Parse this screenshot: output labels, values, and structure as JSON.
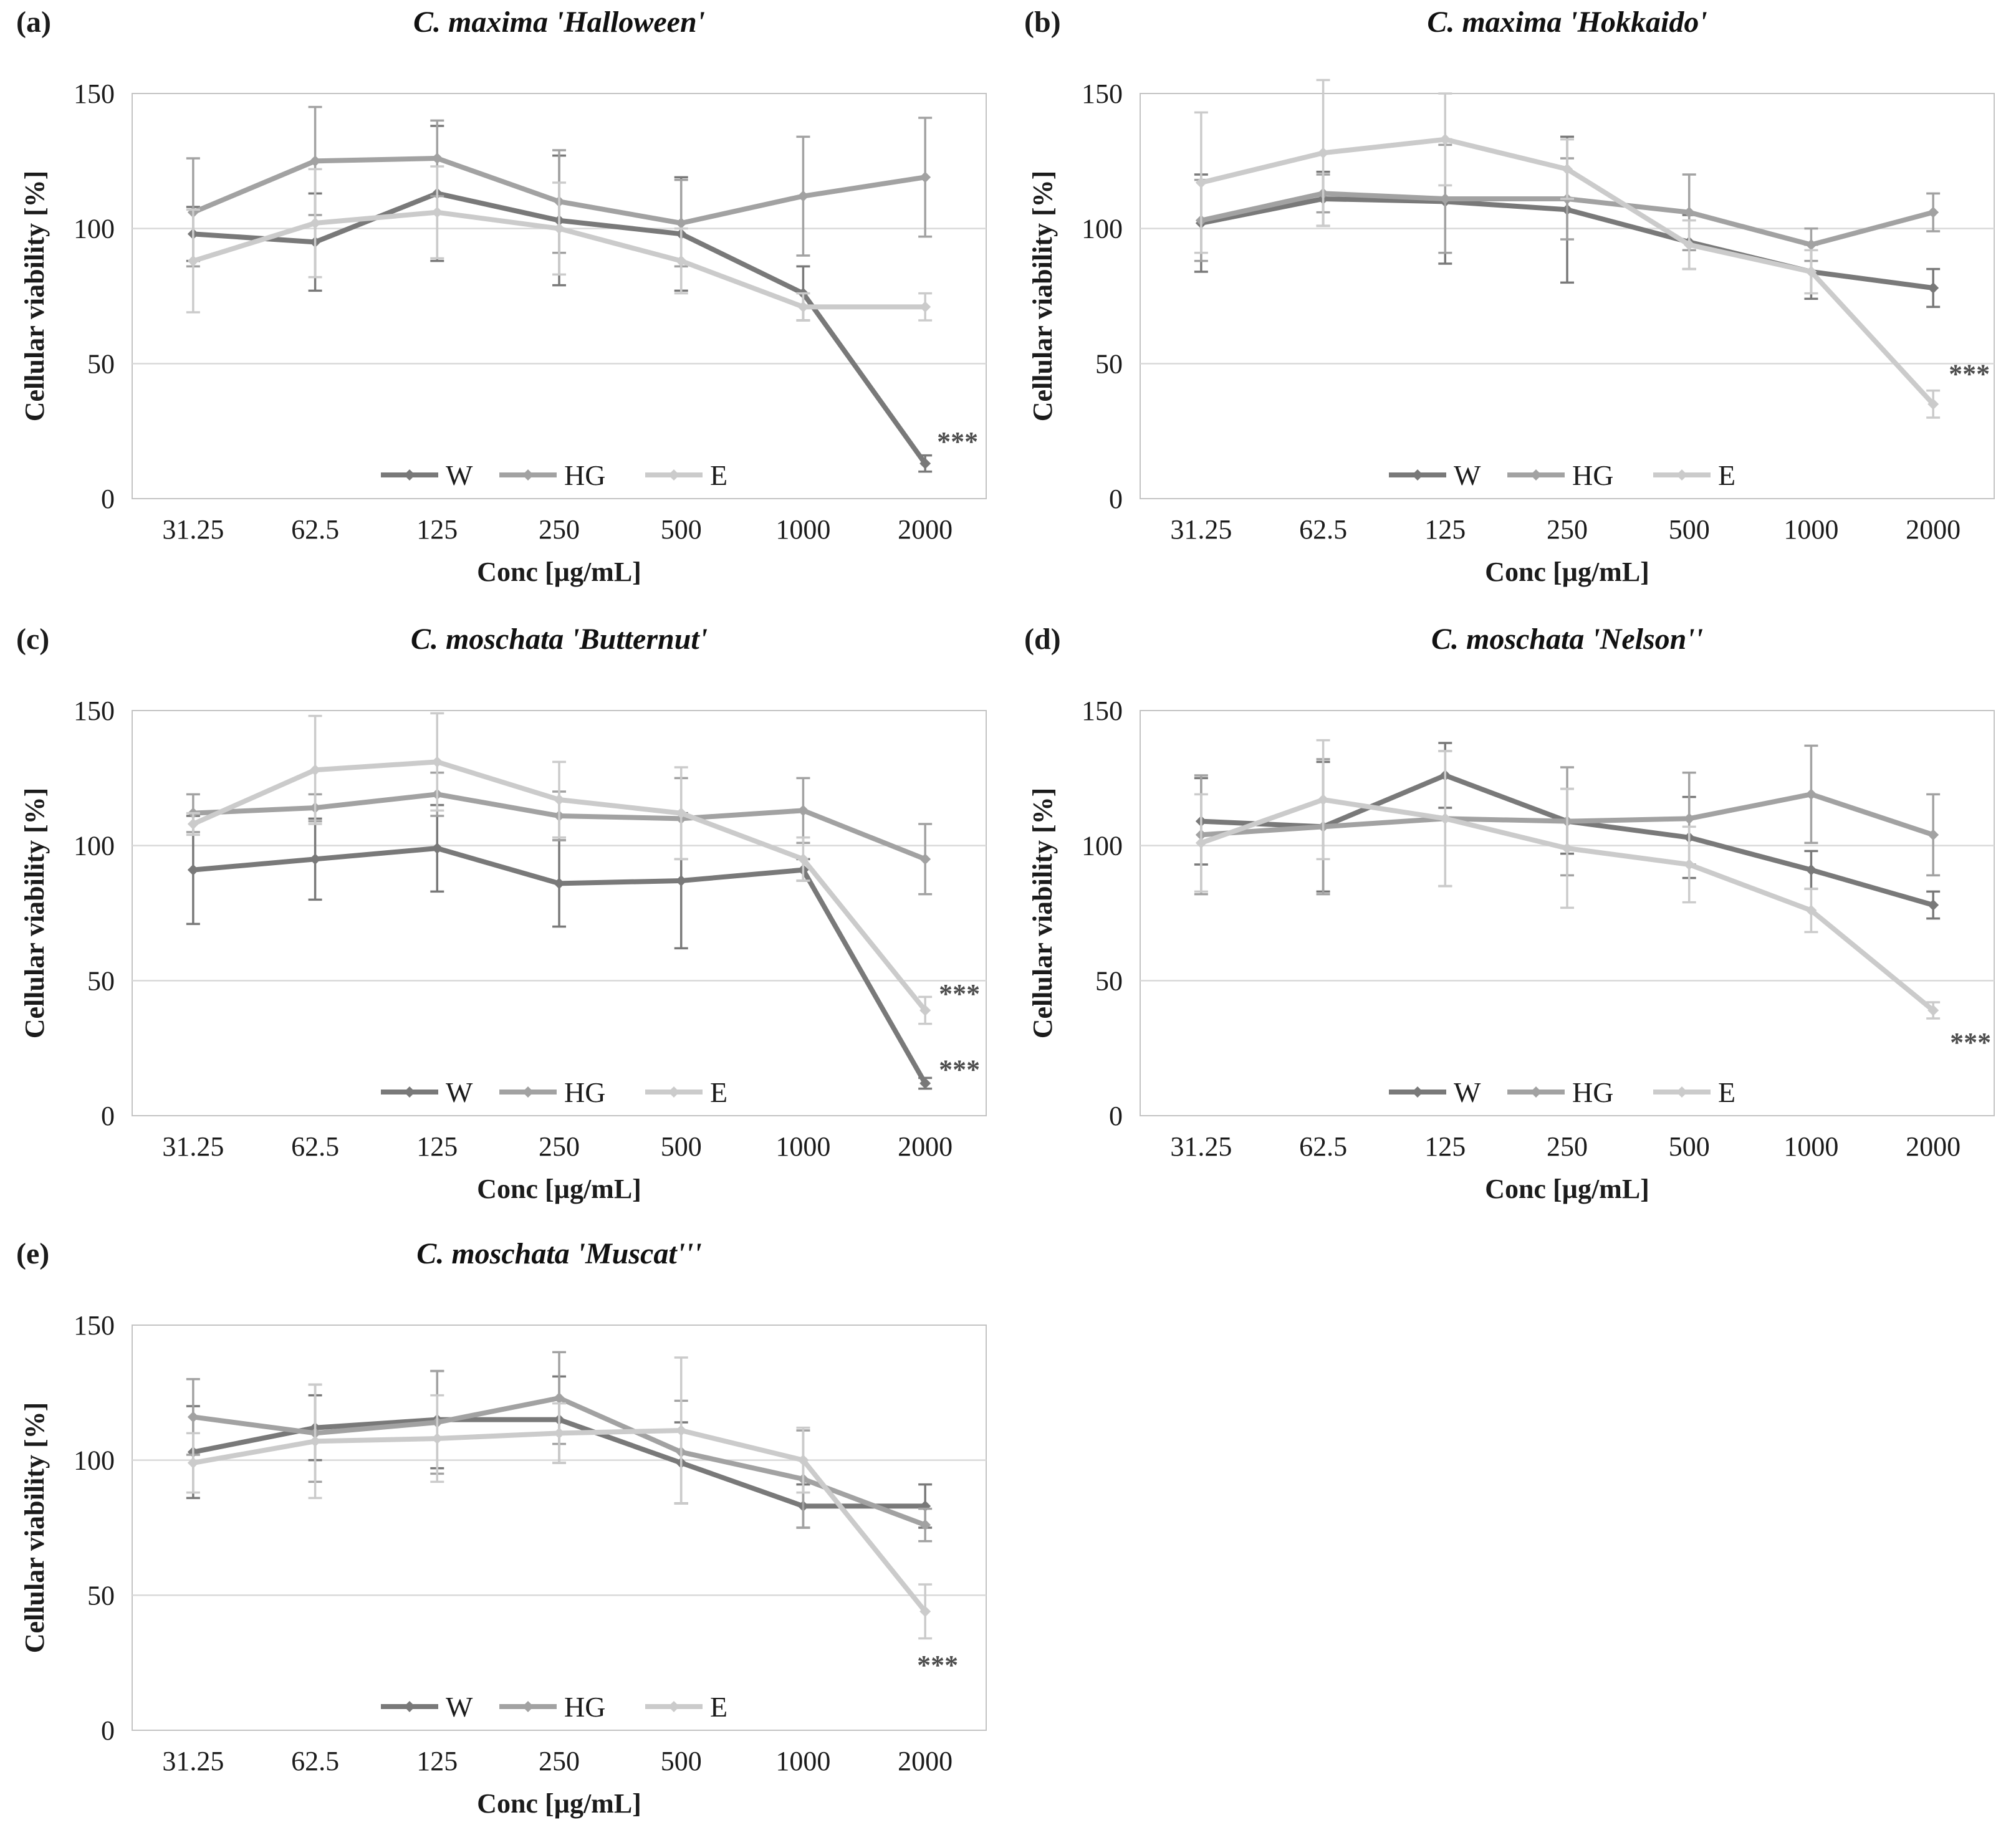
{
  "colors": {
    "w": "#797979",
    "hg": "#a2a2a2",
    "e": "#cbcbcb",
    "gridline": "#d9d9d9",
    "plot_border": "#c3c3c3",
    "text": "#1b1b1b",
    "annotation": "#4d4d4d",
    "background": "#ffffff"
  },
  "axes": {
    "xlabel": "Conc [µg/mL]",
    "ylabel": "Cellular viability [%]",
    "categories": [
      "31.25",
      "62.5",
      "125",
      "250",
      "500",
      "1000",
      "2000"
    ],
    "yticks": [
      0,
      50,
      100,
      150
    ],
    "ylim": [
      0,
      150
    ],
    "grid_values": [
      50,
      100
    ]
  },
  "legend": {
    "items": [
      "W",
      "HG",
      "E"
    ],
    "position": "bottom-center-inside"
  },
  "chart_data": [
    {
      "type": "line",
      "panel": "(a)",
      "title": "C. maxima 'Halloween'",
      "xlabel": "Conc [µg/mL]",
      "ylabel": "Cellular viability [%]",
      "ylim": [
        0,
        150
      ],
      "categories": [
        "31.25",
        "62.5",
        "125",
        "250",
        "500",
        "1000",
        "2000"
      ],
      "series": [
        {
          "name": "W",
          "color_key": "w",
          "values": [
            98,
            95,
            113,
            103,
            98,
            76,
            13
          ],
          "errors": [
            10,
            18,
            25,
            24,
            21,
            10,
            3
          ]
        },
        {
          "name": "HG",
          "color_key": "hg",
          "values": [
            106,
            125,
            126,
            110,
            102,
            112,
            119
          ],
          "errors": [
            20,
            20,
            14,
            19,
            16,
            22,
            22
          ]
        },
        {
          "name": "E",
          "color_key": "e",
          "values": [
            88,
            102,
            106,
            100,
            88,
            71,
            71
          ],
          "errors": [
            19,
            20,
            17,
            17,
            12,
            5,
            5
          ]
        }
      ],
      "annotations": [
        {
          "text": "***",
          "xi": 6,
          "y": 21,
          "dx": 52
        }
      ]
    },
    {
      "type": "line",
      "panel": "(b)",
      "title": "C. maxima 'Hokkaido'",
      "xlabel": "Conc [µg/mL]",
      "ylabel": "Cellular viability [%]",
      "ylim": [
        0,
        150
      ],
      "categories": [
        "31.25",
        "62.5",
        "125",
        "250",
        "500",
        "1000",
        "2000"
      ],
      "series": [
        {
          "name": "W",
          "color_key": "w",
          "values": [
            102,
            111,
            110,
            107,
            95,
            84,
            78
          ],
          "errors": [
            18,
            10,
            23,
            27,
            10,
            10,
            7
          ]
        },
        {
          "name": "HG",
          "color_key": "hg",
          "values": [
            103,
            113,
            111,
            111,
            106,
            94,
            106
          ],
          "errors": [
            15,
            7,
            20,
            15,
            14,
            6,
            7
          ]
        },
        {
          "name": "E",
          "color_key": "e",
          "values": [
            117,
            128,
            133,
            122,
            94,
            84,
            35
          ],
          "errors": [
            26,
            27,
            17,
            11,
            9,
            8,
            5
          ]
        }
      ],
      "annotations": [
        {
          "text": "***",
          "xi": 6,
          "y": 46,
          "dx": 58
        }
      ]
    },
    {
      "type": "line",
      "panel": "(c)",
      "title": "C. moschata 'Butternut'",
      "xlabel": "Conc [µg/mL]",
      "ylabel": "Cellular viability [%]",
      "ylim": [
        0,
        150
      ],
      "categories": [
        "31.25",
        "62.5",
        "125",
        "250",
        "500",
        "1000",
        "2000"
      ],
      "series": [
        {
          "name": "W",
          "color_key": "w",
          "values": [
            91,
            95,
            99,
            86,
            87,
            91,
            12
          ],
          "errors": [
            20,
            15,
            16,
            16,
            25,
            4,
            2
          ]
        },
        {
          "name": "HG",
          "color_key": "hg",
          "values": [
            112,
            114,
            119,
            111,
            110,
            113,
            95
          ],
          "errors": [
            7,
            5,
            8,
            9,
            15,
            12,
            13
          ]
        },
        {
          "name": "E",
          "color_key": "e",
          "values": [
            108,
            128,
            131,
            117,
            112,
            95,
            39
          ],
          "errors": [
            4,
            20,
            18,
            14,
            17,
            8,
            5
          ]
        }
      ],
      "annotations": [
        {
          "text": "***",
          "xi": 6,
          "y": 45,
          "dx": 55
        },
        {
          "text": "***",
          "xi": 6,
          "y": 17,
          "dx": 55
        }
      ]
    },
    {
      "type": "line",
      "panel": "(d)",
      "title": "C. moschata 'Nelson''",
      "xlabel": "Conc [µg/mL]",
      "ylabel": "Cellular viability [%]",
      "ylim": [
        0,
        150
      ],
      "categories": [
        "31.25",
        "62.5",
        "125",
        "250",
        "500",
        "1000",
        "2000"
      ],
      "series": [
        {
          "name": "W",
          "color_key": "w",
          "values": [
            109,
            107,
            126,
            109,
            103,
            91,
            78
          ],
          "errors": [
            16,
            24,
            12,
            12,
            15,
            7,
            5
          ]
        },
        {
          "name": "HG",
          "color_key": "hg",
          "values": [
            104,
            107,
            110,
            109,
            110,
            119,
            104
          ],
          "errors": [
            22,
            25,
            25,
            20,
            17,
            18,
            15
          ]
        },
        {
          "name": "E",
          "color_key": "e",
          "values": [
            101,
            117,
            110,
            99,
            93,
            76,
            39
          ],
          "errors": [
            18,
            22,
            25,
            22,
            14,
            8,
            3
          ]
        }
      ],
      "annotations": [
        {
          "text": "***",
          "xi": 6,
          "y": 27,
          "dx": 60
        }
      ]
    },
    {
      "type": "line",
      "panel": "(e)",
      "title": "C. moschata 'Muscat'''",
      "xlabel": "Conc [µg/mL]",
      "ylabel": "Cellular viability [%]",
      "ylim": [
        0,
        150
      ],
      "categories": [
        "31.25",
        "62.5",
        "125",
        "250",
        "500",
        "1000",
        "2000"
      ],
      "series": [
        {
          "name": "W",
          "color_key": "w",
          "values": [
            103,
            112,
            115,
            115,
            99,
            83,
            83
          ],
          "errors": [
            17,
            12,
            18,
            16,
            15,
            8,
            8
          ]
        },
        {
          "name": "HG",
          "color_key": "hg",
          "values": [
            116,
            110,
            114,
            123,
            103,
            93,
            76
          ],
          "errors": [
            14,
            18,
            19,
            17,
            19,
            18,
            6
          ]
        },
        {
          "name": "E",
          "color_key": "e",
          "values": [
            99,
            107,
            108,
            110,
            111,
            100,
            44
          ],
          "errors": [
            11,
            21,
            16,
            11,
            27,
            12,
            10
          ]
        }
      ],
      "annotations": [
        {
          "text": "***",
          "xi": 6,
          "y": 24,
          "dx": 20
        }
      ]
    }
  ]
}
